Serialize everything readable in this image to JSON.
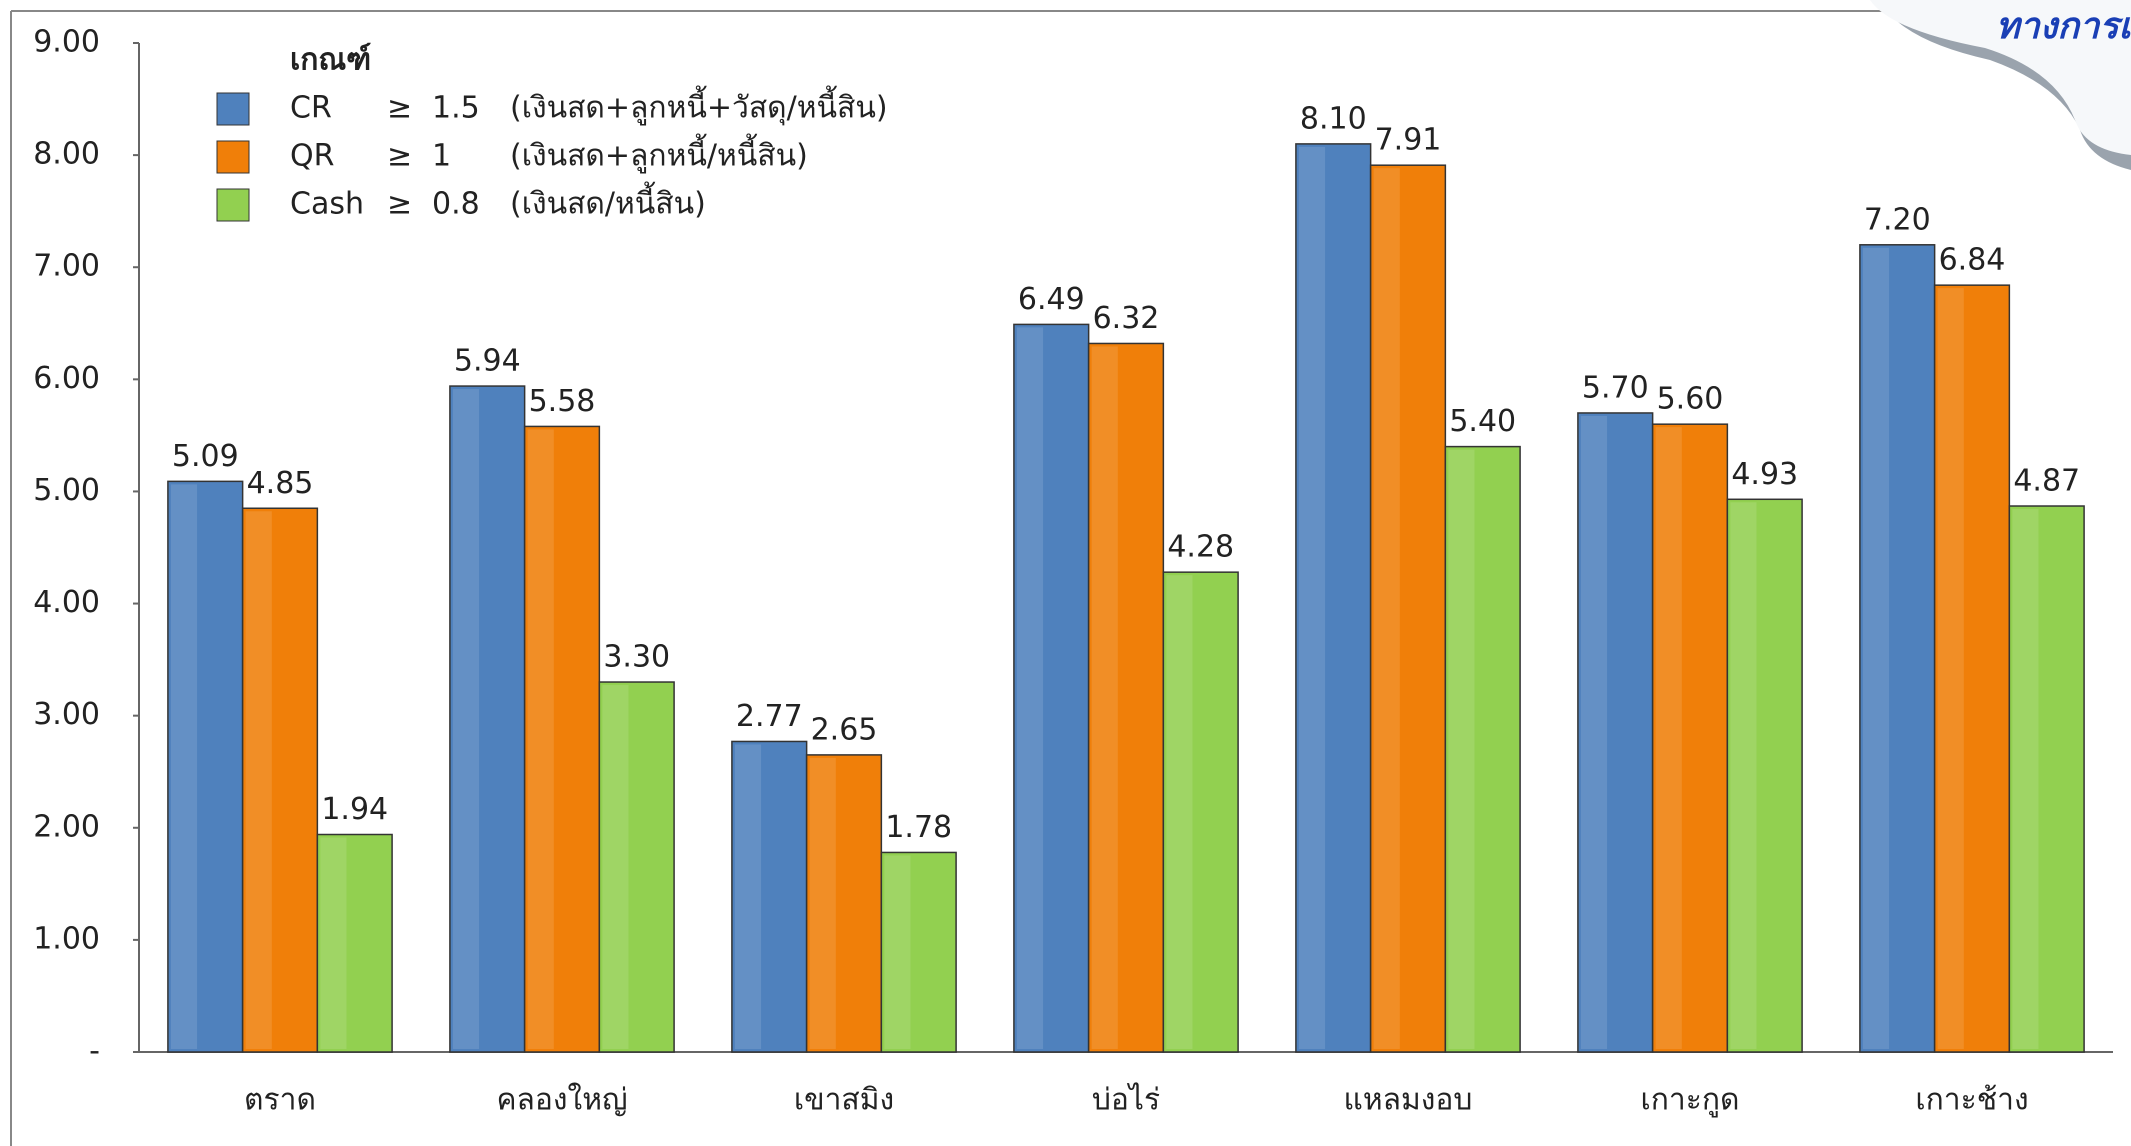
{
  "corner_text": "ทางการเ",
  "chart_data": {
    "type": "bar",
    "legend_title": "เกณฑ์",
    "categories": [
      "ตราด",
      "คลองใหญ่",
      "เขาสมิง",
      "บ่อไร่",
      "แหลมงอบ",
      "เกาะกูด",
      "เกาะช้าง"
    ],
    "series": [
      {
        "name": "CR",
        "operator": "≥",
        "threshold": "1.5",
        "formula": "(เงินสด+ลูกหนี้+วัสดุ/หนี้สิน)",
        "color": "#4f81bd",
        "values": [
          5.09,
          5.94,
          2.77,
          6.49,
          8.1,
          5.7,
          7.2
        ],
        "value_labels": [
          "5.09",
          "5.94",
          "2.77",
          "6.49",
          "8.10",
          "5.70",
          "7.20"
        ]
      },
      {
        "name": "QR",
        "operator": "≥",
        "threshold": "1",
        "formula": "(เงินสด+ลูกหนี้/หนี้สิน)",
        "color": "#f07f09",
        "values": [
          4.85,
          5.58,
          2.65,
          6.32,
          7.91,
          5.6,
          6.84
        ],
        "value_labels": [
          "4.85",
          "5.58",
          "2.65",
          "6.32",
          "7.91",
          "5.60",
          "6.84"
        ]
      },
      {
        "name": "Cash",
        "operator": "≥",
        "threshold": "0.8",
        "formula": "(เงินสด/หนี้สิน)",
        "color": "#92d050",
        "values": [
          1.94,
          3.3,
          1.78,
          4.28,
          5.4,
          4.93,
          4.87
        ],
        "value_labels": [
          "1.94",
          "3.30",
          "1.78",
          "4.28",
          "5.40",
          "4.93",
          "4.87"
        ]
      }
    ],
    "ylim": [
      0,
      9
    ],
    "yticks": [
      {
        "value": 0,
        "label": "-"
      },
      {
        "value": 1,
        "label": "1.00"
      },
      {
        "value": 2,
        "label": "2.00"
      },
      {
        "value": 3,
        "label": "3.00"
      },
      {
        "value": 4,
        "label": "4.00"
      },
      {
        "value": 5,
        "label": "5.00"
      },
      {
        "value": 6,
        "label": "6.00"
      },
      {
        "value": 7,
        "label": "7.00"
      },
      {
        "value": 8,
        "label": "8.00"
      },
      {
        "value": 9,
        "label": "9.00"
      }
    ],
    "legend": "upper-left",
    "grid": false
  }
}
